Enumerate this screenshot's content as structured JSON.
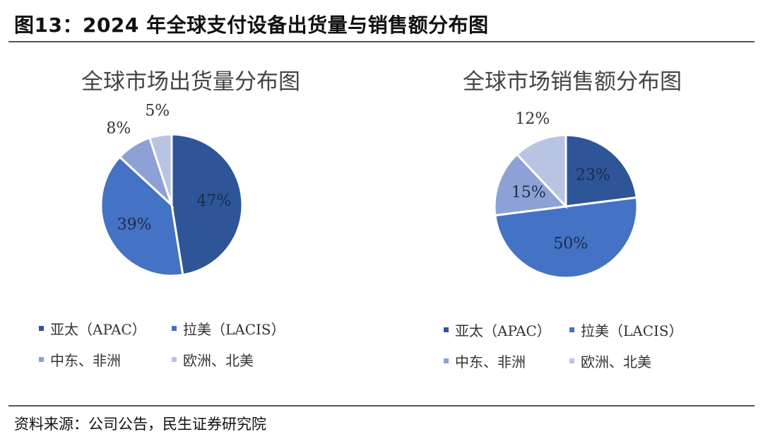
{
  "figure_title": "图13：2024 年全球支付设备出货量与销售额分布图",
  "source": "资料来源：公司公告，民生证券研究院",
  "legend": [
    {
      "label": "亚太（APAC）",
      "color": "#2e5597"
    },
    {
      "label": "拉美（LACIS）",
      "color": "#4472c4"
    },
    {
      "label": "中东、非洲",
      "color": "#8ea1d6"
    },
    {
      "label": "欧洲、北美",
      "color": "#b9c3e2"
    }
  ],
  "chart_data": [
    {
      "type": "pie",
      "title": "全球市场出货量分布图",
      "categories": [
        "亚太（APAC）",
        "拉美（LACIS）",
        "中东、非洲",
        "欧洲、北美"
      ],
      "values": [
        47,
        39,
        8,
        5
      ],
      "labels": [
        "47%",
        "39%",
        "8%",
        "5%"
      ],
      "colors": [
        "#2e5597",
        "#4472c4",
        "#8ea1d6",
        "#b9c3e2"
      ]
    },
    {
      "type": "pie",
      "title": "全球市场销售额分布图",
      "categories": [
        "亚太（APAC）",
        "拉美（LACIS）",
        "中东、非洲",
        "欧洲、北美"
      ],
      "values": [
        23,
        50,
        15,
        12
      ],
      "labels": [
        "23%",
        "50%",
        "15%",
        "12%"
      ],
      "colors": [
        "#2e5597",
        "#4472c4",
        "#8ea1d6",
        "#b9c3e2"
      ]
    }
  ]
}
